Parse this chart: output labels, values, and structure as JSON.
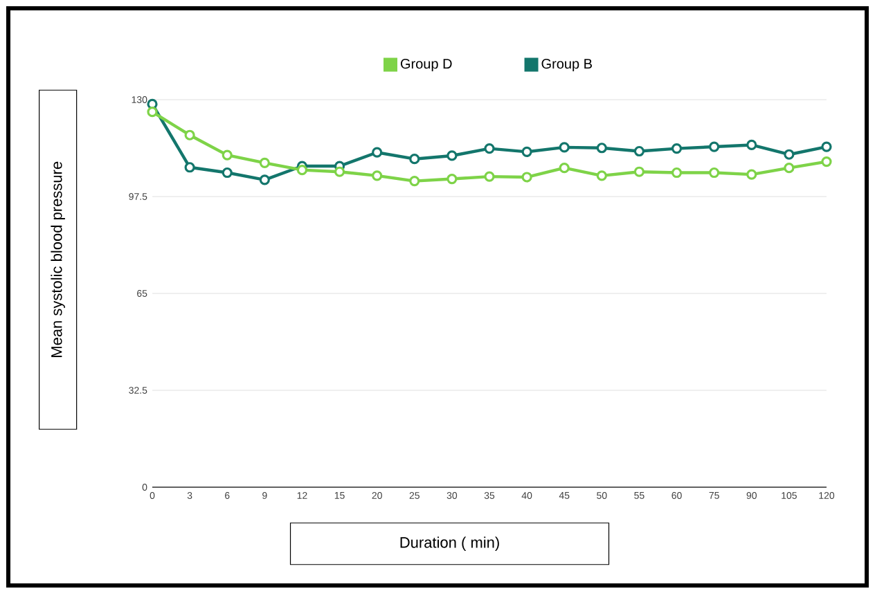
{
  "chart_data": {
    "type": "line",
    "xlabel": "Duration ( min)",
    "ylabel": "Mean systolic blood pressure",
    "categories": [
      "0",
      "3",
      "6",
      "9",
      "12",
      "15",
      "20",
      "25",
      "30",
      "35",
      "40",
      "45",
      "50",
      "55",
      "60",
      "75",
      "90",
      "105",
      "120"
    ],
    "series": [
      {
        "name": "Group D",
        "color": "#7ed348",
        "values": [
          125.9,
          118.1,
          111.4,
          108.8,
          106.4,
          105.8,
          104.5,
          102.7,
          103.4,
          104.2,
          104.0,
          107.1,
          104.5,
          105.8,
          105.5,
          105.5,
          104.9,
          107.1,
          109.2
        ]
      },
      {
        "name": "Group B",
        "color": "#13766c",
        "values": [
          128.5,
          107.3,
          105.5,
          103.1,
          107.7,
          107.7,
          112.3,
          110.1,
          111.2,
          113.6,
          112.5,
          114.0,
          113.8,
          112.7,
          113.6,
          114.2,
          114.8,
          111.6,
          114.2
        ]
      }
    ],
    "ylim": [
      0,
      130
    ],
    "yticks": [
      0,
      32.5,
      65,
      97.5,
      130
    ],
    "grid": "y",
    "legend": "top",
    "marker": "circle",
    "line_style": "solid"
  }
}
